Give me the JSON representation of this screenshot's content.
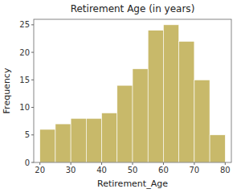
{
  "chart_data": {
    "type": "histogram",
    "title": "Retirement Age (in years)",
    "x_label": "Retirement_Age",
    "y_label": "Frequency",
    "bins": [
      20,
      25,
      30,
      35,
      40,
      45,
      50,
      55,
      60,
      65,
      70,
      75,
      80
    ],
    "values": [
      6,
      7,
      8,
      8,
      9,
      14,
      17,
      24,
      25,
      22,
      15,
      5
    ],
    "color": "#c8b96a",
    "xlim": [
      18,
      82
    ],
    "ylim": [
      0,
      26
    ],
    "xticks": [
      20,
      30,
      40,
      50,
      60,
      70,
      80
    ],
    "yticks": [
      0,
      5,
      10,
      15,
      20,
      25
    ],
    "grid": false
  }
}
